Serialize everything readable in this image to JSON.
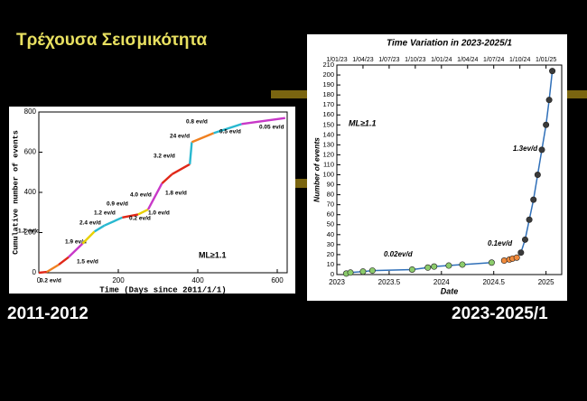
{
  "slide": {
    "title": "Τρέχουσα Σεισμικότητα",
    "left_caption": "2011-2012",
    "right_caption": "2023-2025/1"
  },
  "chart_data": [
    {
      "type": "line",
      "x_label": "Time (Days since 2011/1/1)",
      "y_label": "Cumulative number of events",
      "annotation": "ML≥1.1",
      "xlim": [
        0,
        625
      ],
      "ylim": [
        0,
        800
      ],
      "xticks": [
        0,
        200,
        400,
        600
      ],
      "yticks": [
        0,
        200,
        400,
        600,
        800
      ],
      "series": [
        {
          "name": "0.2 ev/d",
          "color": "#e02818",
          "x": [
            0,
            20
          ],
          "values": [
            0,
            4
          ]
        },
        {
          "name": "1.2 ev/d",
          "color": "#f08020",
          "x": [
            20,
            50
          ],
          "values": [
            4,
            40
          ]
        },
        {
          "name": "1.5 ev/d",
          "color": "#e02818",
          "x": [
            50,
            75
          ],
          "values": [
            40,
            78
          ]
        },
        {
          "name": "1.9 ev/d",
          "color": "#c838c8",
          "x": [
            75,
            110
          ],
          "values": [
            78,
            145
          ]
        },
        {
          "name": "2.4 ev/d",
          "color": "#e8d000",
          "x": [
            110,
            140
          ],
          "values": [
            145,
            205
          ]
        },
        {
          "name": "1.2 ev/d",
          "color": "#28b8d0",
          "x": [
            140,
            165
          ],
          "values": [
            205,
            235
          ]
        },
        {
          "name": "0.9 ev/d",
          "color": "#28b8d0",
          "x": [
            165,
            210
          ],
          "values": [
            235,
            275
          ]
        },
        {
          "name": "0.2 ev/d",
          "color": "#e02818",
          "x": [
            210,
            250
          ],
          "values": [
            275,
            290
          ]
        },
        {
          "name": "1.0 ev/d",
          "color": "#e8d000",
          "x": [
            250,
            275
          ],
          "values": [
            290,
            315
          ]
        },
        {
          "name": "4.0 ev/d",
          "color": "#c838c8",
          "x": [
            275,
            310
          ],
          "values": [
            315,
            445
          ]
        },
        {
          "name": "1.8 ev/d",
          "color": "#e02818",
          "x": [
            310,
            335
          ],
          "values": [
            445,
            490
          ]
        },
        {
          "name": "3.2 ev/d",
          "color": "#e02818",
          "x": [
            335,
            380
          ],
          "values": [
            490,
            540
          ]
        },
        {
          "name": "24 ev/d",
          "color": "#28b8d0",
          "x": [
            380,
            385
          ],
          "values": [
            540,
            650
          ]
        },
        {
          "name": "0.8 ev/d",
          "color": "#f08020",
          "x": [
            385,
            440
          ],
          "values": [
            650,
            695
          ]
        },
        {
          "name": "0.5 ev/d",
          "color": "#28b8d0",
          "x": [
            440,
            510
          ],
          "values": [
            695,
            740
          ]
        },
        {
          "name": "0.05 ev/d",
          "color": "#c838c8",
          "x": [
            510,
            620
          ],
          "values": [
            740,
            770
          ]
        }
      ]
    },
    {
      "type": "scatter",
      "title": "Time Variation in 2023-2025/1",
      "x_label": "Date",
      "y_label": "Number of events",
      "annotation": "ML≥1.1",
      "line_color": "#2f6fb8",
      "xlim": [
        2023,
        2025.15
      ],
      "ylim": [
        0,
        210
      ],
      "xticks": [
        2023,
        2023.5,
        2024,
        2024.5,
        2025
      ],
      "x2ticks": [
        {
          "value": 2023,
          "label": "1/01/23"
        },
        {
          "value": 2023.25,
          "label": "1/04/23"
        },
        {
          "value": 2023.5,
          "label": "1/07/23"
        },
        {
          "value": 2023.75,
          "label": "1/10/23"
        },
        {
          "value": 2024,
          "label": "1/01/24"
        },
        {
          "value": 2024.25,
          "label": "1/04/24"
        },
        {
          "value": 2024.5,
          "label": "1/07/24"
        },
        {
          "value": 2024.75,
          "label": "1/10/24"
        },
        {
          "value": 2025,
          "label": "1/01/25"
        }
      ],
      "yticks": [
        0,
        10,
        20,
        30,
        40,
        50,
        60,
        70,
        80,
        90,
        100,
        110,
        120,
        130,
        140,
        150,
        160,
        170,
        180,
        190,
        200,
        210
      ],
      "series": [
        {
          "name": "0.02ev/d",
          "color": "#8ccc6c",
          "x": [
            2023.09,
            2023.13,
            2023.25,
            2023.34,
            2023.72,
            2023.87,
            2023.93,
            2024.07,
            2024.2,
            2024.48
          ],
          "values": [
            1,
            2,
            3,
            4,
            5,
            7,
            8,
            9,
            10,
            12
          ]
        },
        {
          "name": "0.1ev/d",
          "color": "#f08a3c",
          "x": [
            2024.6,
            2024.65,
            2024.68,
            2024.72
          ],
          "values": [
            14,
            15,
            16,
            17
          ]
        },
        {
          "name": "1.3ev/d",
          "color": "#3a3a3a",
          "x": [
            2024.76,
            2024.8,
            2024.84,
            2024.88,
            2024.92,
            2024.96,
            2025.0,
            2025.03,
            2025.06
          ],
          "values": [
            22,
            35,
            55,
            75,
            100,
            125,
            150,
            175,
            204
          ]
        }
      ]
    }
  ]
}
